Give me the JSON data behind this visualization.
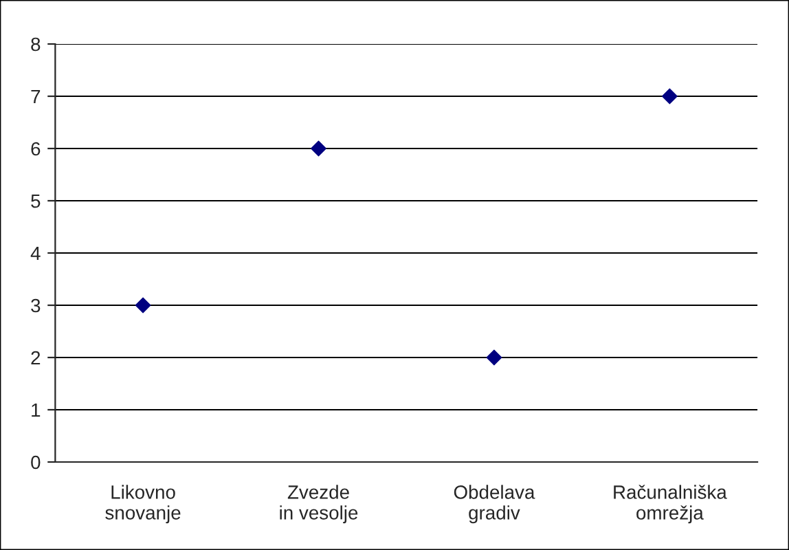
{
  "chart_data": {
    "type": "scatter",
    "categories": [
      "Likovno\nsnovanje",
      "Zvezde\nin vesolje",
      "Obdelava\ngradiv",
      "Računalniška\nomrežja"
    ],
    "series": [
      {
        "color": "#000080",
        "values": [
          3,
          6,
          2,
          7
        ]
      }
    ],
    "marker": "diamond",
    "ylim": [
      0,
      8
    ],
    "yticks": [
      0,
      1,
      2,
      3,
      4,
      5,
      6,
      7,
      8
    ],
    "grid": "y",
    "legend": false
  }
}
